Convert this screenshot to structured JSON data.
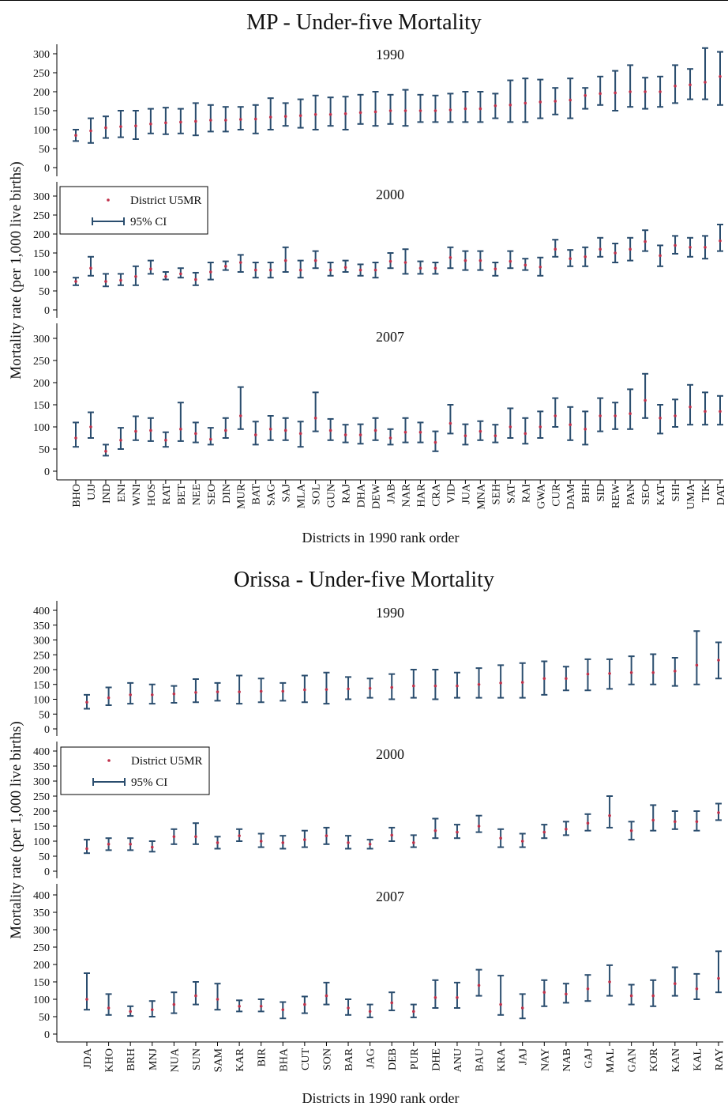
{
  "chart_data": [
    {
      "type": "errorbar",
      "title": "MP - Under-five Mortality",
      "xlabel": "Districts in 1990 rank order",
      "ylabel": "Mortality rate (per 1,000 live births)",
      "legend": {
        "point": "District U5MR",
        "ci": "95% CI"
      },
      "ylim": [
        0,
        320
      ],
      "yticks": [
        0,
        50,
        100,
        150,
        200,
        250,
        300
      ],
      "categories": [
        "BHO",
        "UJJ",
        "IND",
        "ENI",
        "WNI",
        "HOS",
        "RAT",
        "BET",
        "NEE",
        "SEO",
        "DIN",
        "MUR",
        "BAT",
        "SAG",
        "SAJ",
        "MLA",
        "SOL",
        "GUN",
        "RAJ",
        "DHA",
        "DEW",
        "JAB",
        "NAR",
        "HAR",
        "CRA",
        "VID",
        "JUA",
        "MNA",
        "SEH",
        "SAT",
        "RAI",
        "GWA",
        "CUR",
        "DAM",
        "BHI",
        "SID",
        "REW",
        "PAN",
        "SEO",
        "KAT",
        "SHI",
        "UMA",
        "TIK",
        "DAT"
      ],
      "panels": [
        {
          "label": "1990",
          "values": [
            85,
            97,
            105,
            108,
            110,
            115,
            118,
            120,
            122,
            125,
            125,
            127,
            128,
            133,
            135,
            137,
            140,
            140,
            142,
            145,
            147,
            150,
            150,
            150,
            150,
            152,
            155,
            155,
            163,
            165,
            170,
            173,
            175,
            178,
            190,
            195,
            197,
            200,
            200,
            200,
            215,
            218,
            225,
            240
          ],
          "lower": [
            70,
            65,
            78,
            80,
            75,
            90,
            88,
            90,
            85,
            95,
            95,
            100,
            90,
            100,
            110,
            105,
            100,
            110,
            100,
            115,
            110,
            115,
            110,
            120,
            120,
            120,
            120,
            120,
            130,
            120,
            120,
            130,
            140,
            130,
            155,
            165,
            150,
            160,
            155,
            160,
            170,
            180,
            180,
            165
          ],
          "upper": [
            100,
            130,
            135,
            150,
            150,
            155,
            158,
            155,
            170,
            165,
            160,
            160,
            165,
            183,
            170,
            180,
            190,
            185,
            187,
            192,
            200,
            192,
            205,
            192,
            190,
            195,
            200,
            200,
            195,
            230,
            235,
            232,
            210,
            235,
            210,
            240,
            255,
            270,
            237,
            240,
            270,
            260,
            315,
            305
          ]
        },
        {
          "label": "2000",
          "values": [
            75,
            110,
            75,
            78,
            88,
            108,
            88,
            95,
            80,
            100,
            115,
            125,
            105,
            105,
            130,
            105,
            130,
            105,
            112,
            105,
            105,
            128,
            125,
            110,
            110,
            138,
            130,
            130,
            108,
            128,
            118,
            113,
            160,
            135,
            140,
            160,
            150,
            160,
            180,
            143,
            170,
            165,
            165,
            182
          ],
          "lower": [
            65,
            90,
            62,
            65,
            65,
            95,
            80,
            85,
            65,
            80,
            105,
            100,
            85,
            85,
            100,
            85,
            110,
            90,
            100,
            90,
            85,
            110,
            95,
            95,
            95,
            110,
            105,
            105,
            90,
            110,
            105,
            90,
            140,
            115,
            115,
            140,
            125,
            130,
            155,
            115,
            148,
            140,
            135,
            155
          ],
          "upper": [
            85,
            140,
            95,
            95,
            115,
            130,
            100,
            110,
            98,
            125,
            128,
            145,
            125,
            125,
            165,
            130,
            155,
            125,
            130,
            120,
            125,
            150,
            160,
            128,
            125,
            165,
            155,
            155,
            125,
            155,
            135,
            138,
            185,
            158,
            165,
            190,
            175,
            190,
            210,
            170,
            195,
            190,
            195,
            225
          ]
        },
        {
          "label": "2007",
          "values": [
            75,
            100,
            45,
            70,
            90,
            92,
            70,
            95,
            85,
            72,
            92,
            125,
            82,
            95,
            92,
            85,
            120,
            92,
            82,
            82,
            92,
            75,
            88,
            88,
            65,
            108,
            80,
            90,
            80,
            100,
            85,
            100,
            125,
            105,
            95,
            125,
            125,
            130,
            160,
            120,
            125,
            145,
            135,
            135
          ],
          "lower": [
            55,
            75,
            35,
            50,
            70,
            68,
            55,
            68,
            65,
            60,
            75,
            95,
            60,
            70,
            70,
            55,
            90,
            70,
            65,
            62,
            70,
            60,
            65,
            65,
            45,
            85,
            60,
            70,
            65,
            75,
            62,
            75,
            100,
            70,
            60,
            90,
            95,
            95,
            120,
            85,
            100,
            105,
            105,
            105
          ],
          "upper": [
            110,
            133,
            60,
            98,
            124,
            120,
            88,
            155,
            110,
            98,
            120,
            190,
            112,
            125,
            120,
            112,
            178,
            118,
            105,
            106,
            120,
            95,
            120,
            110,
            90,
            150,
            106,
            113,
            105,
            142,
            120,
            135,
            165,
            145,
            135,
            165,
            155,
            185,
            220,
            150,
            162,
            195,
            178,
            170
          ]
        }
      ]
    },
    {
      "type": "errorbar",
      "title": "Orissa - Under-five Mortality",
      "xlabel": "Districts in 1990 rank order",
      "ylabel": "Mortality rate (per 1,000 live births)",
      "legend": {
        "point": "District U5MR",
        "ci": "95% CI"
      },
      "ylim": [
        0,
        420
      ],
      "yticks": [
        0,
        50,
        100,
        150,
        200,
        250,
        300,
        350,
        400
      ],
      "categories": [
        "JDA",
        "KHO",
        "BRH",
        "MNJ",
        "NUA",
        "SUN",
        "SAM",
        "KAR",
        "BIR",
        "BHA",
        "CUT",
        "SON",
        "BAR",
        "JAG",
        "DEB",
        "PUR",
        "DHE",
        "ANU",
        "BAU",
        "KRA",
        "JAJ",
        "NAY",
        "NAB",
        "GAJ",
        "MAL",
        "GAN",
        "KOR",
        "KAN",
        "KAL",
        "RAY"
      ],
      "panels": [
        {
          "label": "1990",
          "values": [
            90,
            105,
            115,
            115,
            118,
            123,
            125,
            125,
            127,
            127,
            132,
            133,
            135,
            137,
            140,
            145,
            145,
            145,
            150,
            155,
            157,
            170,
            170,
            185,
            187,
            190,
            190,
            195,
            215,
            232
          ],
          "lower": [
            68,
            80,
            85,
            85,
            88,
            90,
            95,
            85,
            90,
            95,
            90,
            85,
            100,
            105,
            100,
            105,
            100,
            105,
            105,
            105,
            105,
            115,
            130,
            130,
            135,
            150,
            150,
            145,
            150,
            170
          ],
          "upper": [
            115,
            140,
            155,
            150,
            145,
            168,
            155,
            180,
            170,
            155,
            180,
            190,
            175,
            170,
            185,
            200,
            200,
            190,
            205,
            215,
            222,
            228,
            210,
            235,
            235,
            245,
            252,
            240,
            330,
            292
          ]
        },
        {
          "label": "2000",
          "values": [
            75,
            90,
            90,
            80,
            115,
            115,
            95,
            118,
            100,
            95,
            105,
            118,
            95,
            90,
            120,
            95,
            135,
            130,
            150,
            110,
            100,
            130,
            140,
            160,
            185,
            135,
            170,
            165,
            165,
            195
          ],
          "lower": [
            60,
            70,
            70,
            65,
            90,
            90,
            75,
            100,
            80,
            75,
            80,
            90,
            75,
            75,
            100,
            80,
            110,
            110,
            130,
            80,
            80,
            110,
            120,
            135,
            145,
            105,
            135,
            140,
            135,
            170
          ],
          "upper": [
            105,
            110,
            110,
            100,
            140,
            160,
            115,
            140,
            125,
            118,
            135,
            145,
            118,
            105,
            145,
            120,
            175,
            155,
            185,
            140,
            125,
            155,
            165,
            190,
            250,
            165,
            220,
            200,
            200,
            225
          ]
        },
        {
          "label": "2007",
          "values": [
            100,
            75,
            65,
            70,
            85,
            110,
            100,
            80,
            80,
            70,
            85,
            110,
            75,
            65,
            90,
            65,
            105,
            105,
            140,
            85,
            75,
            120,
            115,
            130,
            150,
            110,
            110,
            145,
            130,
            160
          ],
          "lower": [
            70,
            55,
            52,
            50,
            60,
            85,
            70,
            65,
            65,
            45,
            60,
            85,
            55,
            48,
            68,
            48,
            75,
            75,
            110,
            55,
            45,
            80,
            90,
            95,
            110,
            85,
            80,
            110,
            100,
            120
          ],
          "upper": [
            175,
            115,
            80,
            95,
            120,
            150,
            145,
            97,
            100,
            92,
            108,
            148,
            100,
            85,
            120,
            85,
            155,
            148,
            185,
            168,
            115,
            155,
            145,
            170,
            198,
            142,
            155,
            192,
            173,
            238
          ]
        }
      ]
    }
  ]
}
